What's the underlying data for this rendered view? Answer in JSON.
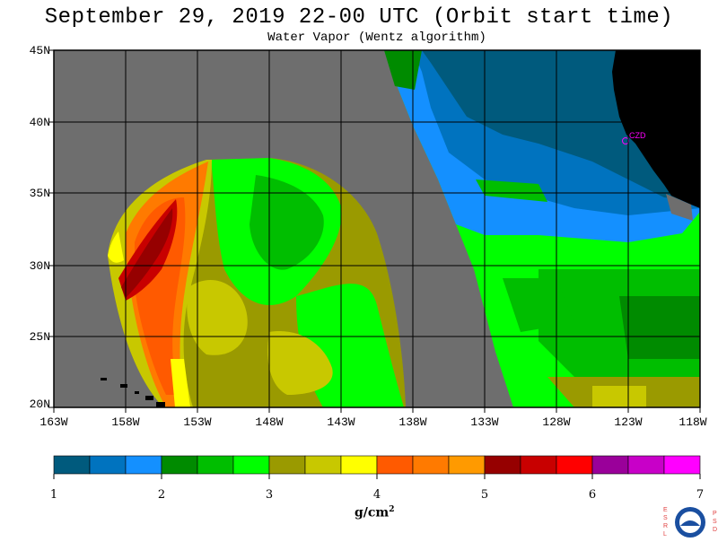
{
  "title": "September 29, 2019  22-00 UTC  (Orbit start time)",
  "subtitle": "Water Vapor (Wentz algorithm)",
  "lat_labels": [
    "45N",
    "40N",
    "35N",
    "30N",
    "25N",
    "20N"
  ],
  "lon_labels": [
    "163W",
    "158W",
    "153W",
    "148W",
    "143W",
    "138W",
    "133W",
    "128W",
    "123W",
    "118W"
  ],
  "colorbar": {
    "tick_labels": [
      "1",
      "2",
      "3",
      "4",
      "5",
      "6",
      "7"
    ],
    "unit_main": "g/cm",
    "unit_sup": "2",
    "colors": [
      "#005a7d",
      "#0073bf",
      "#1490ff",
      "#008b00",
      "#00be00",
      "#00ff00",
      "#9a9a00",
      "#c8c800",
      "#ffff00",
      "#ff5a00",
      "#ff7a00",
      "#ff9a00",
      "#960000",
      "#c80000",
      "#ff0000",
      "#9a009a",
      "#c800c8",
      "#ff00ff"
    ]
  },
  "station": {
    "label": "CZD"
  },
  "logo": {
    "letters_left": "ESRL",
    "letters_right": "PSD"
  },
  "colors": {
    "no_data": "#6e6e6e",
    "land": "#000000",
    "grid": "#000000"
  }
}
